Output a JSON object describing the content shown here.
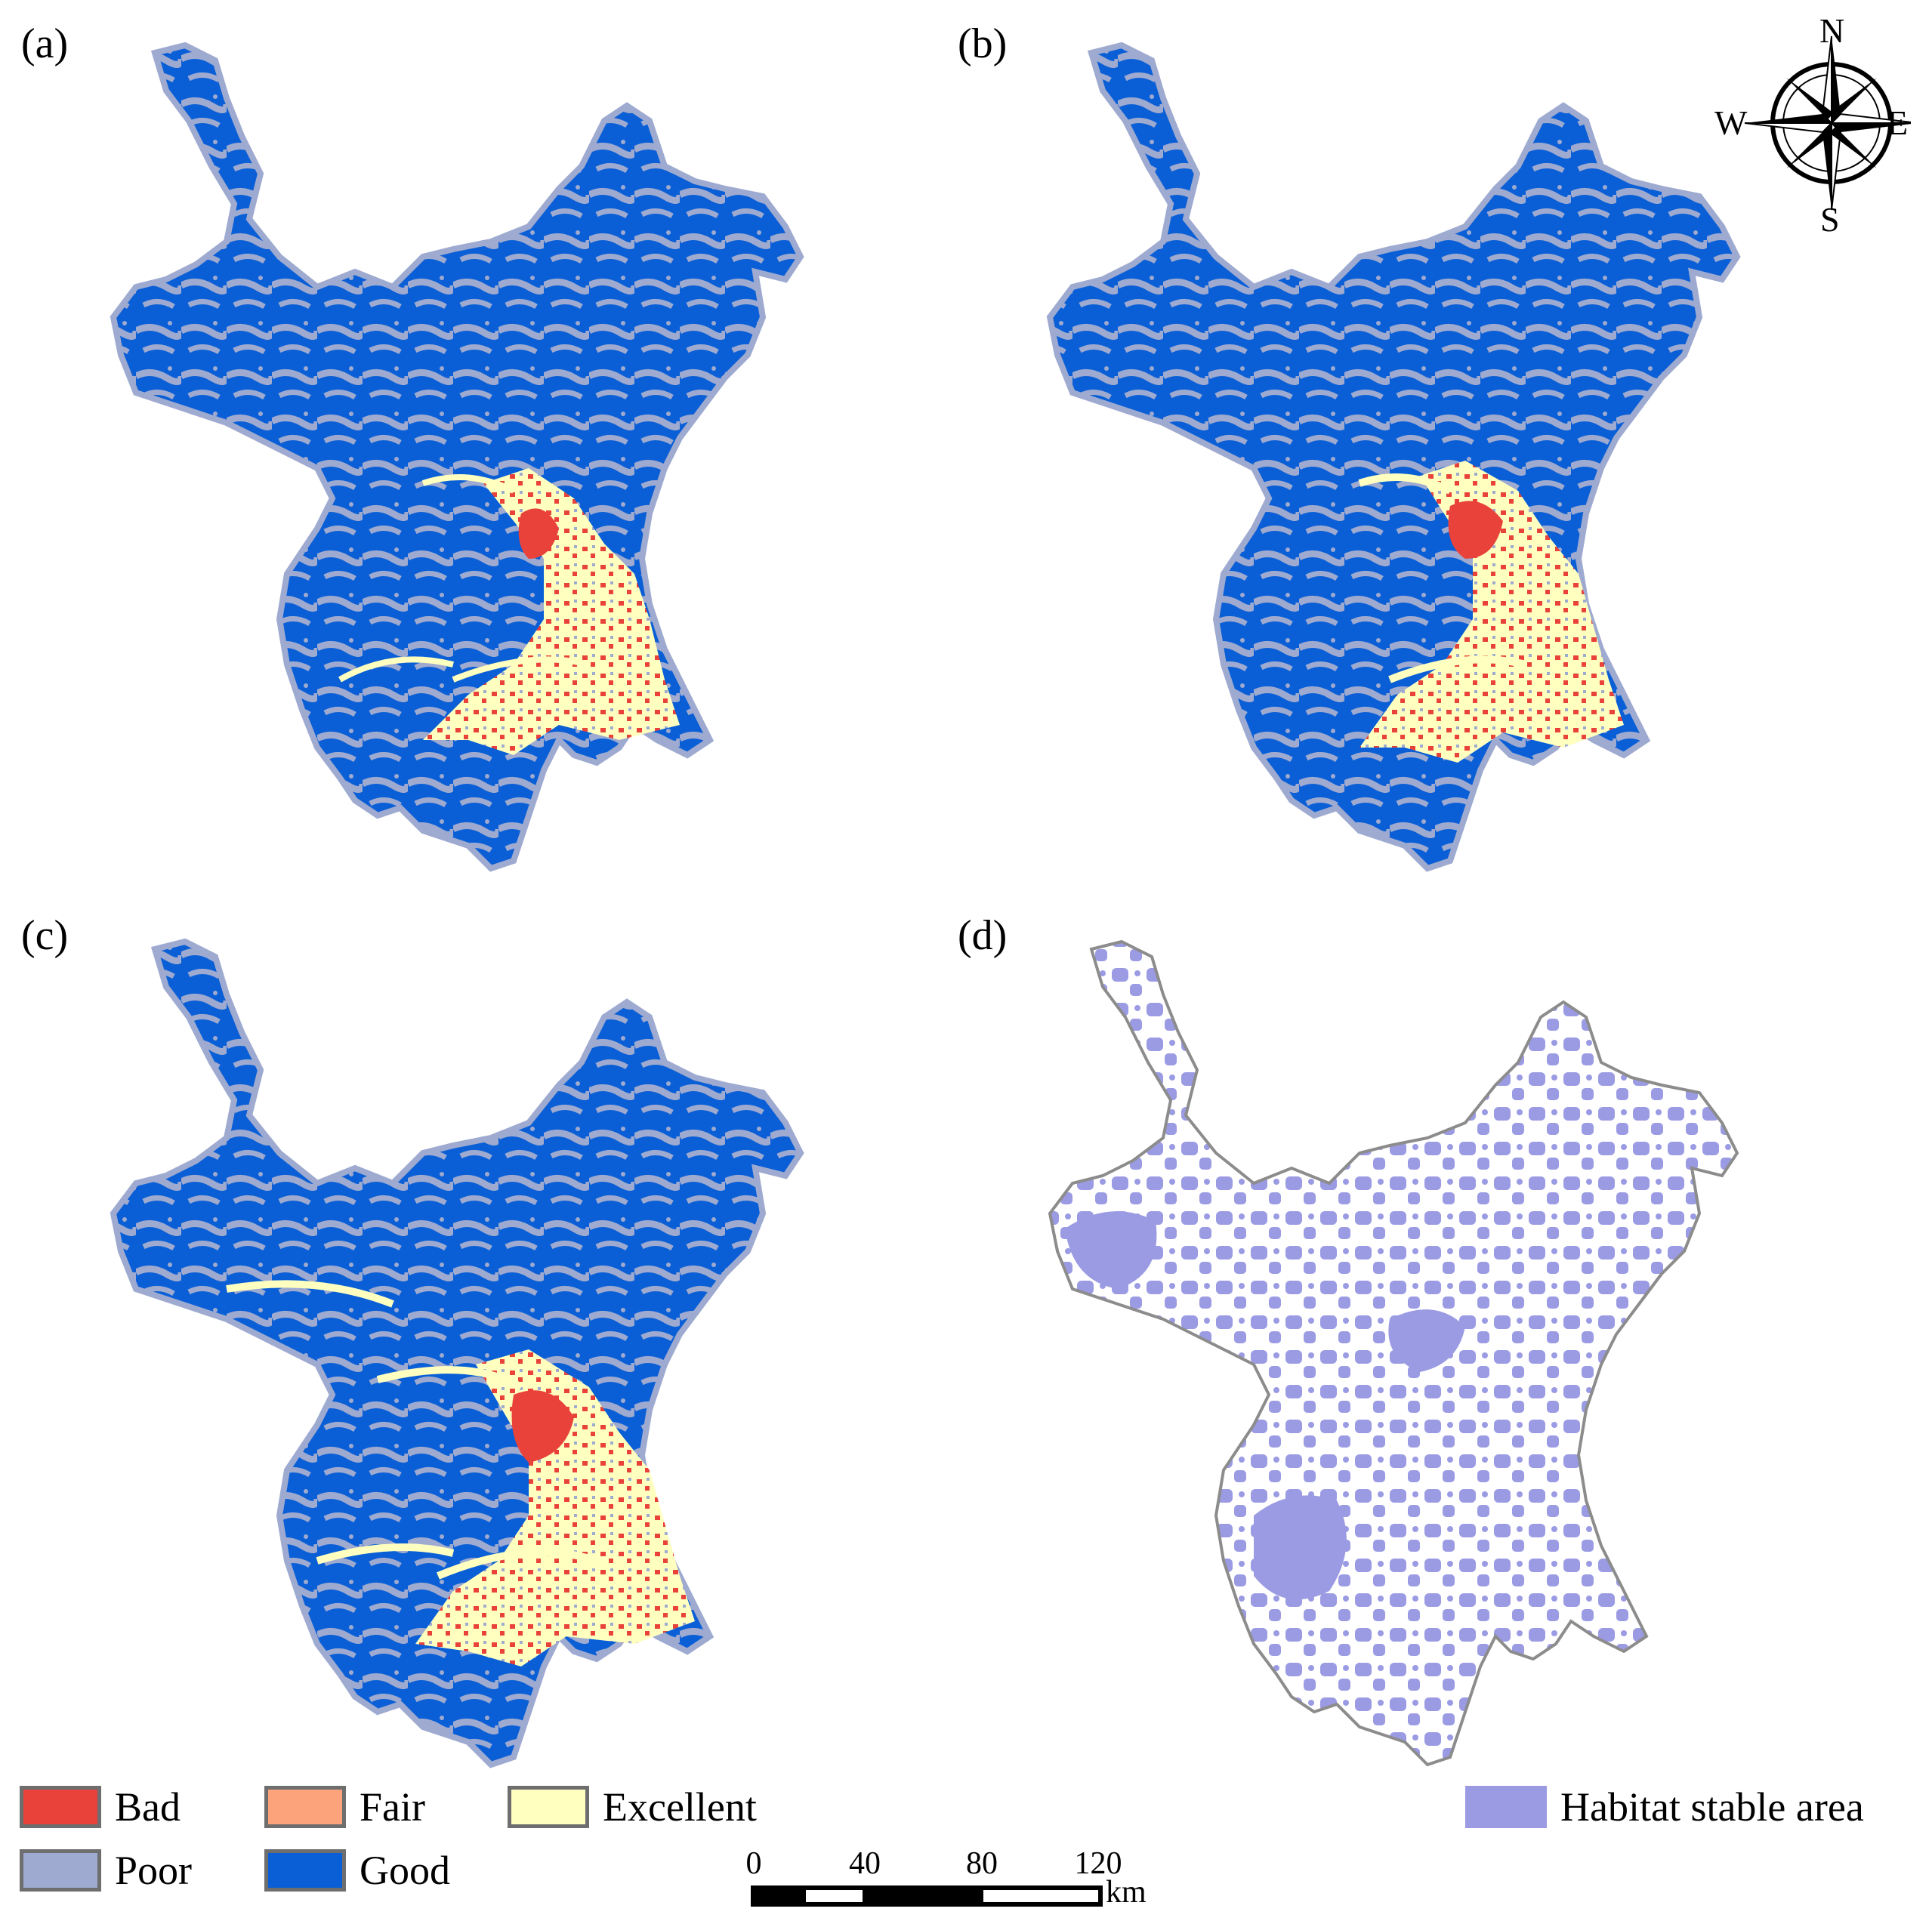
{
  "panels": [
    {
      "label": "(a)"
    },
    {
      "label": "(b)"
    },
    {
      "label": "(c)"
    },
    {
      "label": "(d)"
    }
  ],
  "legend": {
    "items": [
      {
        "label": "Bad",
        "color": "#e8423a"
      },
      {
        "label": "Fair",
        "color": "#fca37c"
      },
      {
        "label": "Excellent",
        "color": "#ffffc0"
      },
      {
        "label": "Poor",
        "color": "#9eaad0"
      },
      {
        "label": "Good",
        "color": "#0a5fd6"
      }
    ],
    "stable": {
      "label": "Habitat stable area",
      "color": "#9b9be4"
    }
  },
  "scale": {
    "ticks": [
      "0",
      "40",
      "80",
      "120"
    ],
    "unit": "km"
  },
  "compass": {
    "n": "N",
    "s": "S",
    "e": "E",
    "w": "W"
  },
  "colors": {
    "outline": "#8c8c8c",
    "background": "#ffffff"
  }
}
